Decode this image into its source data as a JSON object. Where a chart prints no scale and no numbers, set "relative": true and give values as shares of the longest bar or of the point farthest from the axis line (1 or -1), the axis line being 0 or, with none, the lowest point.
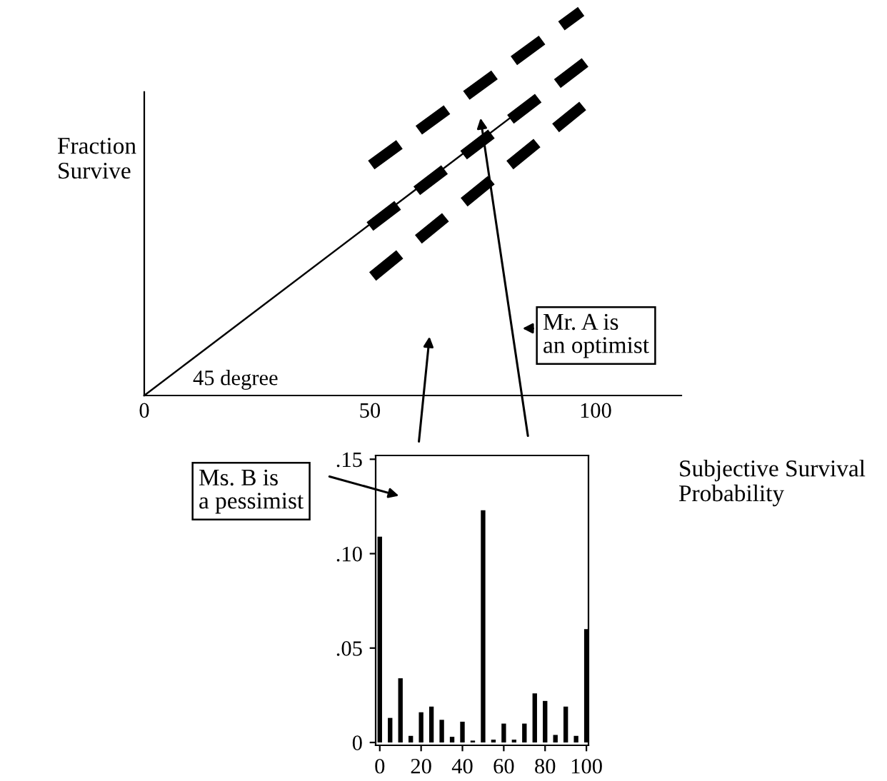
{
  "chart_data": [
    {
      "type": "line",
      "relative": true,
      "xlabel": "Subjective Survival\nProbability",
      "ylabel": "Fraction\nSurvive",
      "xlim": [
        0,
        119
      ],
      "xticks": [
        0,
        50,
        100
      ],
      "tick_labels": "x",
      "grid": false,
      "legend": false,
      "annotations": [
        "45 degree",
        "Mr. A is\nan optimist",
        "Ms. B is\na pessimist"
      ],
      "series": [
        {
          "color": "#000000",
          "line_style": "solid",
          "x": [
            0,
            83
          ],
          "values": [
            0,
            0.74
          ]
        },
        {
          "color": "#000000",
          "line_style": "dashed",
          "x": [
            50.3,
            96.8
          ],
          "values": [
            0.6,
            1.0
          ]
        },
        {
          "color": "#000000",
          "line_style": "dashed",
          "x": [
            50,
            98
          ],
          "values": [
            0.44,
            0.87
          ]
        },
        {
          "color": "#000000",
          "line_style": "dashed",
          "x": [
            50.6,
            97.8
          ],
          "values": [
            0.31,
            0.76
          ]
        }
      ]
    },
    {
      "type": "bar",
      "xlim": [
        -2,
        101
      ],
      "ylim": [
        -0.0015,
        0.152
      ],
      "xticks": [
        0,
        20,
        40,
        60,
        80,
        100
      ],
      "yticks": [
        0,
        {
          "value": 0.05,
          "label": ".05"
        },
        {
          "value": 0.1,
          "label": ".10"
        },
        {
          "value": 0.15,
          "label": ".15"
        }
      ],
      "grid": false,
      "legend": false,
      "series": [
        {
          "color": "#000000",
          "x": [
            0,
            5,
            10,
            15,
            20,
            25,
            30,
            35,
            40,
            45,
            50,
            55,
            60,
            65,
            70,
            75,
            80,
            85,
            90,
            95,
            100
          ],
          "values": [
            0.109,
            0.013,
            0.034,
            0.0035,
            0.016,
            0.019,
            0.012,
            0.003,
            0.011,
            0.001,
            0.123,
            0.0015,
            0.01,
            0.0015,
            0.01,
            0.026,
            0.022,
            0.004,
            0.019,
            0.0035,
            0.06
          ]
        }
      ]
    }
  ]
}
